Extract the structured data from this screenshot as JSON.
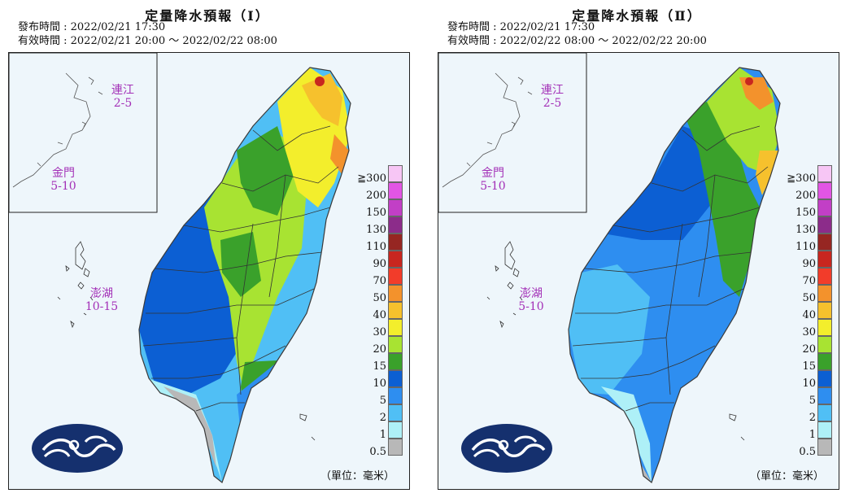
{
  "panels": [
    {
      "title": "定量降水預報（Ⅰ）",
      "issued": "發布時間 : 2022/02/21 17:30",
      "valid": "有效時間 : 2022/02/21 20:00 ～ 2022/02/22 08:00",
      "islands": {
        "matsu": {
          "name": "連江",
          "value": "2-5"
        },
        "kinmen": {
          "name": "金門",
          "value": "5-10"
        },
        "penghu": {
          "name": "澎湖",
          "value": "10-15"
        }
      }
    },
    {
      "title": "定量降水預報（Ⅱ）",
      "issued": "發布時間 : 2022/02/21 17:30",
      "valid": "有效時間 : 2022/02/22 08:00 ～ 2022/02/22 20:00",
      "islands": {
        "matsu": {
          "name": "連江",
          "value": "2-5"
        },
        "kinmen": {
          "name": "金門",
          "value": "5-10"
        },
        "penghu": {
          "name": "澎湖",
          "value": "5-10"
        }
      }
    }
  ],
  "legend": {
    "labels": [
      "≧300",
      "200",
      "150",
      "130",
      "110",
      "90",
      "70",
      "50",
      "40",
      "30",
      "20",
      "15",
      "10",
      "5",
      "2",
      "1",
      "0.5"
    ],
    "colors": [
      "#f7c6f5",
      "#e255e4",
      "#c23fc6",
      "#8c2c8a",
      "#962622",
      "#c8261f",
      "#f23c2a",
      "#f3922c",
      "#f6c12d",
      "#f3ee2c",
      "#a8e332",
      "#3aa12b",
      "#0c5fd3",
      "#2e8ef0",
      "#50bff5",
      "#aef0f7",
      "#b8b8b8"
    ]
  },
  "unit": "（單位：毫米）",
  "map_colors": {
    "border": "#3a3a3a",
    "bg": "#eef6fb",
    "logo": "#15306e"
  }
}
